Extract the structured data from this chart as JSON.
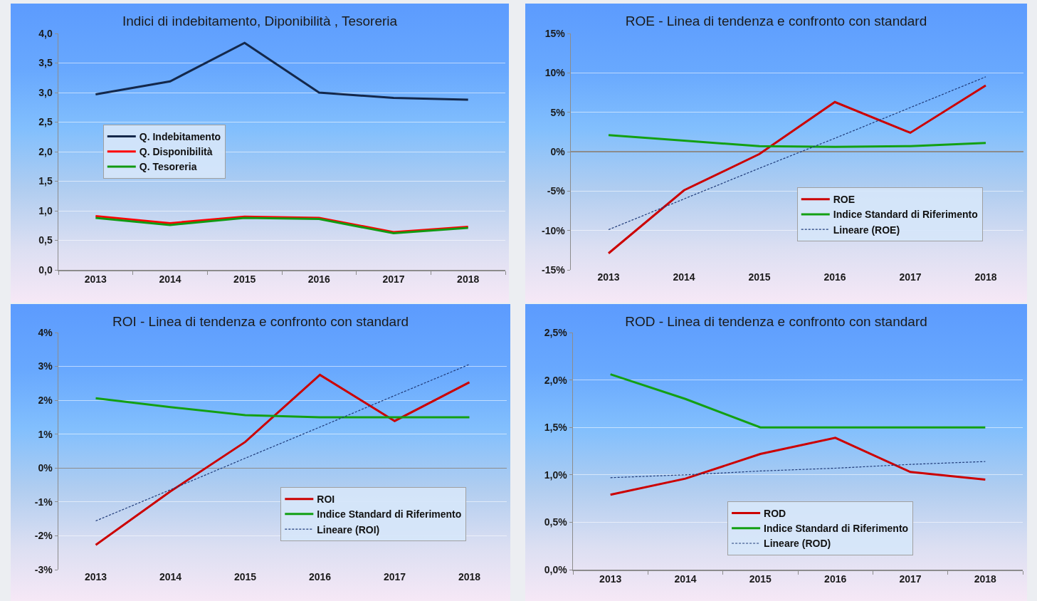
{
  "chart_data": [
    {
      "type": "line",
      "title": "Indici di indebitamento, Diponibilità , Tesoreria",
      "categories": [
        "2013",
        "2014",
        "2015",
        "2016",
        "2017",
        "2018"
      ],
      "series": [
        {
          "name": "Q. Indebitamento",
          "color": "#14284b",
          "values": [
            2.97,
            3.19,
            3.84,
            3.0,
            2.91,
            2.88
          ]
        },
        {
          "name": "Q. Disponibilità",
          "color": "#ff0000",
          "values": [
            0.91,
            0.79,
            0.9,
            0.88,
            0.64,
            0.73
          ]
        },
        {
          "name": "Q. Tesoreria",
          "color": "#129a12",
          "values": [
            0.88,
            0.76,
            0.88,
            0.86,
            0.62,
            0.71
          ]
        }
      ],
      "ylim": [
        0,
        4
      ],
      "yticks": [
        {
          "value": 0,
          "label": "0,0"
        },
        {
          "value": 0.5,
          "label": "0,5"
        },
        {
          "value": 1,
          "label": "1,0"
        },
        {
          "value": 1.5,
          "label": "1,5"
        },
        {
          "value": 2,
          "label": "2,0"
        },
        {
          "value": 2.5,
          "label": "2,5"
        },
        {
          "value": 3,
          "label": "3,0"
        },
        {
          "value": 3.5,
          "label": "3,5"
        },
        {
          "value": 4,
          "label": "4,0"
        }
      ],
      "grid": "y",
      "legend": "left"
    },
    {
      "type": "line",
      "title": "ROE - Linea di tendenza e confronto con standard",
      "categories": [
        "2013",
        "2014",
        "2015",
        "2016",
        "2017",
        "2018"
      ],
      "series": [
        {
          "name": "ROE",
          "color": "#cc0000",
          "values": [
            -12.9,
            -4.9,
            -0.3,
            6.3,
            2.4,
            8.4
          ]
        },
        {
          "name": "Indice Standard di Riferimento",
          "color": "#13a013",
          "values": [
            2.1,
            1.4,
            0.7,
            0.6,
            0.7,
            1.1
          ]
        },
        {
          "name": "Lineare (ROE)",
          "color": "#1f3a78",
          "line_style": "dashed",
          "values": [
            -9.9,
            -6.0,
            -2.1,
            1.7,
            5.6,
            9.5
          ]
        }
      ],
      "ylim": [
        -15,
        15
      ],
      "yticks": [
        {
          "value": -15,
          "label": "-15%"
        },
        {
          "value": -10,
          "label": "-10%"
        },
        {
          "value": -5,
          "label": "-5%"
        },
        {
          "value": 0,
          "label": "0%"
        },
        {
          "value": 5,
          "label": "5%"
        },
        {
          "value": 10,
          "label": "10%"
        },
        {
          "value": 15,
          "label": "15%"
        }
      ],
      "grid": "y",
      "legend": "bottom right"
    },
    {
      "type": "line",
      "title": "ROI - Linea di tendenza e confronto con standard",
      "categories": [
        "2013",
        "2014",
        "2015",
        "2016",
        "2017",
        "2018"
      ],
      "series": [
        {
          "name": "ROI",
          "color": "#cc0000",
          "values": [
            -2.27,
            -0.69,
            0.77,
            2.75,
            1.39,
            2.53
          ]
        },
        {
          "name": "Indice Standard di Riferimento",
          "color": "#13a013",
          "values": [
            2.06,
            1.8,
            1.56,
            1.5,
            1.5,
            1.5
          ]
        },
        {
          "name": "Lineare (ROI)",
          "color": "#1f3a78",
          "line_style": "dashed",
          "values": [
            -1.56,
            -0.64,
            0.29,
            1.21,
            2.14,
            3.06
          ]
        }
      ],
      "ylim": [
        -3,
        4
      ],
      "yticks": [
        {
          "value": -3,
          "label": "-3%"
        },
        {
          "value": -2,
          "label": "-2%"
        },
        {
          "value": -1,
          "label": "-1%"
        },
        {
          "value": 0,
          "label": "0%"
        },
        {
          "value": 1,
          "label": "1%"
        },
        {
          "value": 2,
          "label": "2%"
        },
        {
          "value": 3,
          "label": "3%"
        },
        {
          "value": 4,
          "label": "4%"
        }
      ],
      "grid": "y",
      "legend": "bottom right"
    },
    {
      "type": "line",
      "title": "ROD - Linea di tendenza e confronto con standard",
      "categories": [
        "2013",
        "2014",
        "2015",
        "2016",
        "2017",
        "2018"
      ],
      "series": [
        {
          "name": "ROD",
          "color": "#cc0000",
          "values": [
            0.79,
            0.96,
            1.22,
            1.39,
            1.03,
            0.95
          ]
        },
        {
          "name": "Indice Standard di Riferimento",
          "color": "#13a013",
          "values": [
            2.06,
            1.8,
            1.5,
            1.5,
            1.5,
            1.5
          ]
        },
        {
          "name": "Lineare (ROD)",
          "color": "#1f3a78",
          "line_style": "dashed",
          "values": [
            0.97,
            1.0,
            1.04,
            1.07,
            1.11,
            1.14
          ]
        }
      ],
      "ylim": [
        0,
        2.5
      ],
      "yticks": [
        {
          "value": 0,
          "label": "0,0%"
        },
        {
          "value": 0.5,
          "label": "0,5%"
        },
        {
          "value": 1,
          "label": "1,0%"
        },
        {
          "value": 1.5,
          "label": "1,5%"
        },
        {
          "value": 2,
          "label": "2,0%"
        },
        {
          "value": 2.5,
          "label": "2,5%"
        }
      ],
      "grid": "y",
      "legend": "bottom"
    }
  ]
}
